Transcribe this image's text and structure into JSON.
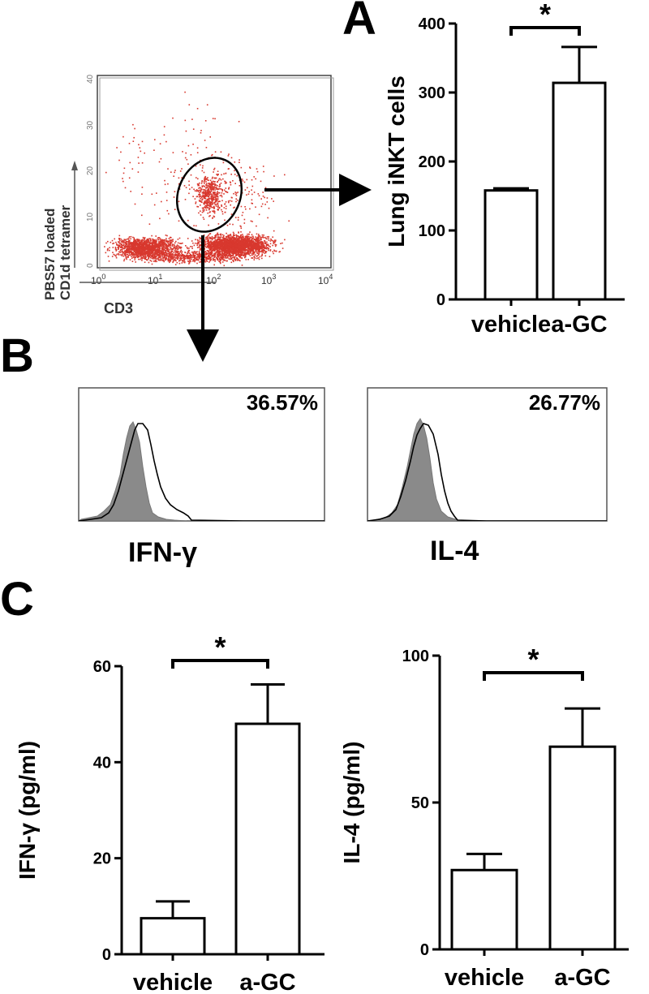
{
  "panels": {
    "a": "A",
    "b": "B",
    "c": "C"
  },
  "flow_plot": {
    "ylabel_line1": "PBS57 loaded",
    "ylabel_line2": "CD1d tetramer",
    "xlabel": "CD3",
    "x_ticks": [
      "10",
      "10",
      "10",
      "10",
      "10"
    ],
    "x_tick_exponents": [
      "0",
      "1",
      "2",
      "3",
      "4"
    ],
    "y_ticks": [
      "0",
      "10",
      "20",
      "30",
      "40"
    ],
    "dot_color": "#d8382e"
  },
  "histograms": {
    "ifn": {
      "percent": "36.57%",
      "label": "IFN-γ"
    },
    "il4": {
      "percent": "26.77%",
      "label": "IL-4"
    },
    "fill_color": "#8a8a8a"
  },
  "chart_data": [
    {
      "type": "bar",
      "panel": "A",
      "categories": [
        "vehicle",
        "a-GC"
      ],
      "values": [
        158,
        314
      ],
      "errors": [
        3,
        52
      ],
      "ylabel": "Lung iNKT cells",
      "ylim": [
        0,
        400
      ],
      "yticks": [
        0,
        100,
        200,
        300,
        400
      ],
      "significance": "*"
    },
    {
      "type": "bar",
      "panel": "C",
      "categories": [
        "vehicle",
        "a-GC"
      ],
      "values": [
        7.5,
        48
      ],
      "errors": [
        3.5,
        8.2
      ],
      "ylabel": "IFN-γ (pg/ml)",
      "ylim": [
        0,
        60
      ],
      "yticks": [
        0,
        20,
        40,
        60
      ],
      "significance": "*"
    },
    {
      "type": "bar",
      "panel": "C",
      "categories": [
        "vehicle",
        "a-GC"
      ],
      "values": [
        27,
        69
      ],
      "errors": [
        5.5,
        13
      ],
      "ylabel": "IL-4 (pg/ml)",
      "ylim": [
        0,
        100
      ],
      "yticks": [
        0,
        50,
        100
      ],
      "significance": "*"
    }
  ]
}
